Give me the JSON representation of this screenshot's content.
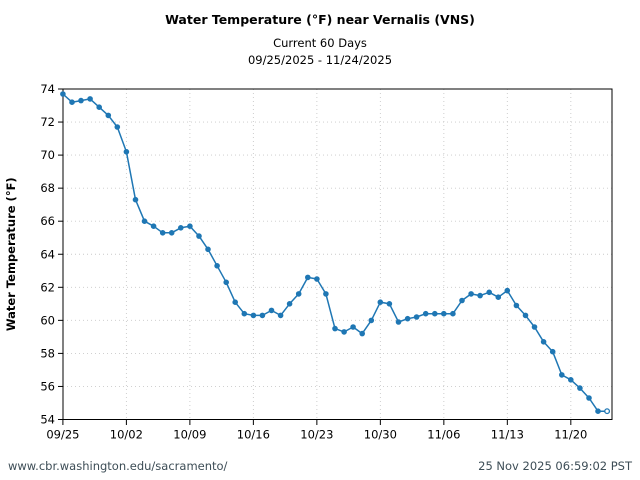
{
  "chart_data": {
    "type": "line",
    "title": "Water Temperature (°F) near Vernalis (VNS)",
    "subtitle": "Current 60 Days",
    "date_range": "09/25/2025 - 11/24/2025",
    "ylabel": "Water Temperature (°F)",
    "ylim": [
      54,
      74
    ],
    "ytick_step": 2,
    "grid": "dotted",
    "legend": "none",
    "line_color": "#1f77b4",
    "grid_color": "#c9c9c9",
    "last_point_open": true,
    "x_tick_labels": [
      "09/25",
      "10/02",
      "10/09",
      "10/16",
      "10/23",
      "10/30",
      "11/06",
      "11/13",
      "11/20"
    ],
    "x": [
      "09/25",
      "09/26",
      "09/27",
      "09/28",
      "09/29",
      "09/30",
      "10/01",
      "10/02",
      "10/03",
      "10/04",
      "10/05",
      "10/06",
      "10/07",
      "10/08",
      "10/09",
      "10/10",
      "10/11",
      "10/12",
      "10/13",
      "10/14",
      "10/15",
      "10/16",
      "10/17",
      "10/18",
      "10/19",
      "10/20",
      "10/21",
      "10/22",
      "10/23",
      "10/24",
      "10/25",
      "10/26",
      "10/27",
      "10/28",
      "10/29",
      "10/30",
      "10/31",
      "11/01",
      "11/02",
      "11/03",
      "11/04",
      "11/05",
      "11/06",
      "11/07",
      "11/08",
      "11/09",
      "11/10",
      "11/11",
      "11/12",
      "11/13",
      "11/14",
      "11/15",
      "11/16",
      "11/17",
      "11/18",
      "11/19",
      "11/20",
      "11/21",
      "11/22",
      "11/23",
      "11/24"
    ],
    "values": [
      73.7,
      73.2,
      73.3,
      73.4,
      72.9,
      72.4,
      71.7,
      70.2,
      67.3,
      66.0,
      65.7,
      65.3,
      65.3,
      65.6,
      65.7,
      65.1,
      64.3,
      63.3,
      62.3,
      61.1,
      60.4,
      60.3,
      60.3,
      60.6,
      60.3,
      61.0,
      61.6,
      62.6,
      62.5,
      61.6,
      59.5,
      59.3,
      59.6,
      59.2,
      60.0,
      61.1,
      61.0,
      59.9,
      60.1,
      60.2,
      60.4,
      60.4,
      60.4,
      60.4,
      61.2,
      61.6,
      61.5,
      61.7,
      61.4,
      61.8,
      60.9,
      60.3,
      59.6,
      58.7,
      58.1,
      56.7,
      56.4,
      55.9,
      55.3,
      54.5,
      54.5
    ]
  },
  "footer": {
    "url": "www.cbr.washington.edu/sacramento/",
    "timestamp": "25 Nov 2025 06:59:02 PST"
  }
}
